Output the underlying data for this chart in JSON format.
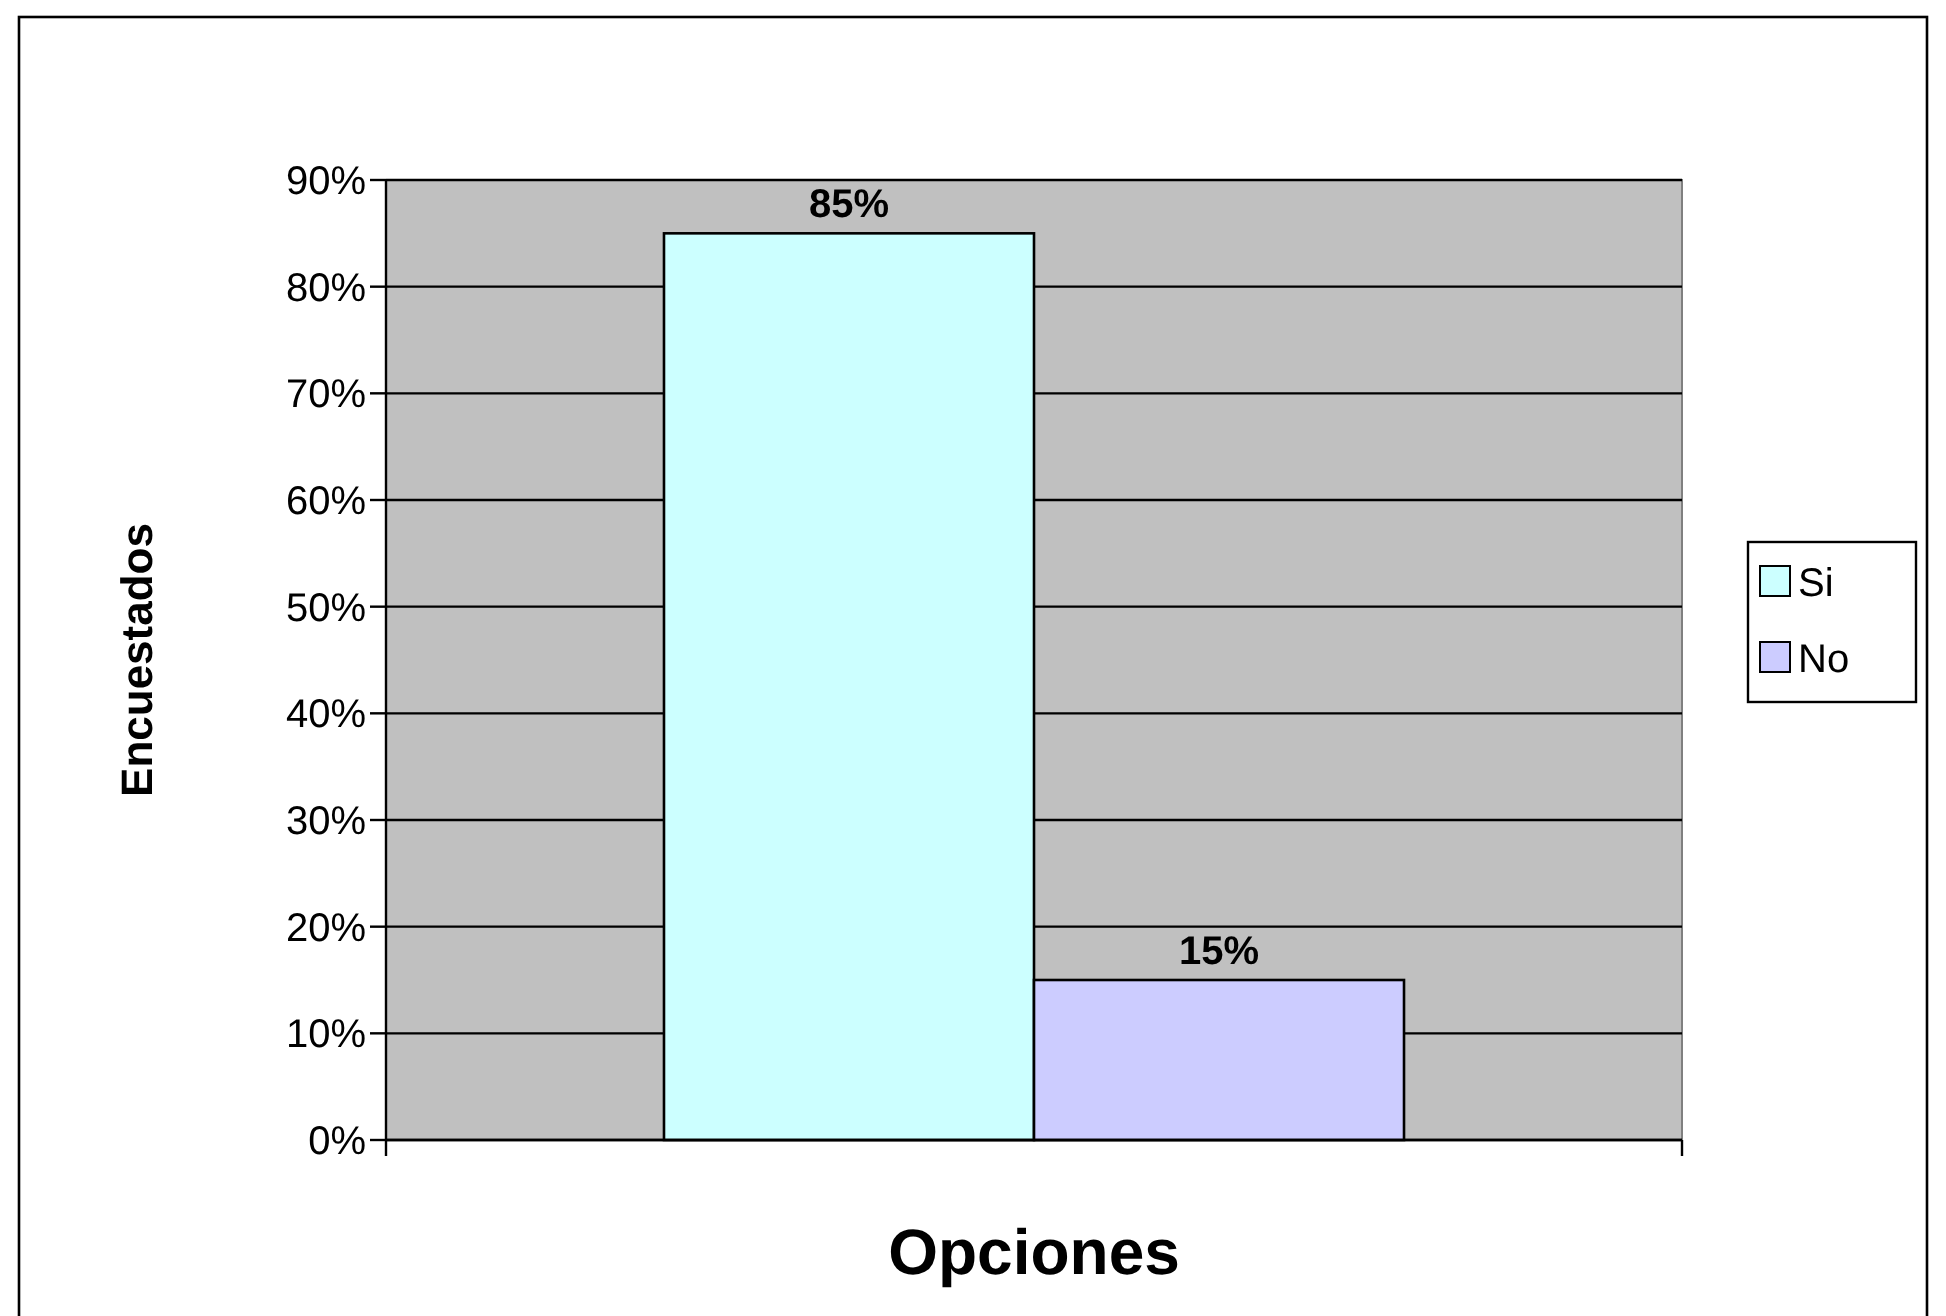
{
  "chart_data": {
    "type": "bar",
    "xlabel": "Opciones",
    "ylabel": "Encuestados",
    "categories": [
      null
    ],
    "series": [
      {
        "name": "Si",
        "color": "#ccffff",
        "values": [
          85
        ],
        "value_labels": [
          "85%"
        ]
      },
      {
        "name": "No",
        "color": "#ccccff",
        "values": [
          15
        ],
        "value_labels": [
          "15%"
        ]
      }
    ],
    "ylim": [
      0,
      90
    ],
    "yticks": [
      {
        "value": 0,
        "label": "0%"
      },
      {
        "value": 10,
        "label": "10%"
      },
      {
        "value": 20,
        "label": "20%"
      },
      {
        "value": 30,
        "label": "30%"
      },
      {
        "value": 40,
        "label": "40%"
      },
      {
        "value": 50,
        "label": "50%"
      },
      {
        "value": 60,
        "label": "60%"
      },
      {
        "value": 70,
        "label": "70%"
      },
      {
        "value": 80,
        "label": "80%"
      },
      {
        "value": 90,
        "label": "90%"
      }
    ],
    "grid": "y",
    "legend": "right"
  }
}
